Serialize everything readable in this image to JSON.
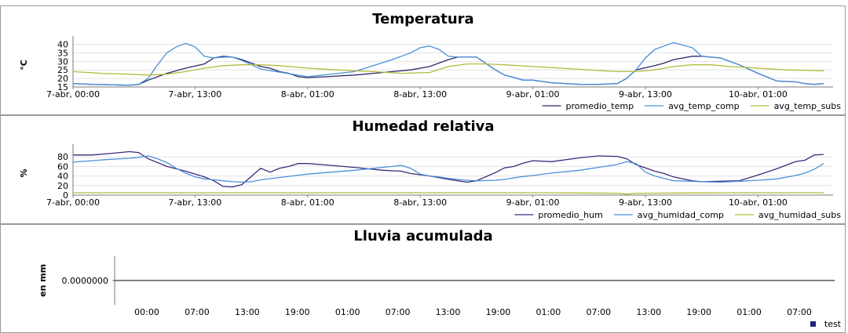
{
  "chart_data": [
    {
      "type": "line",
      "title": "Temperatura",
      "ylabel": "°C",
      "ylim": [
        15,
        43
      ],
      "yticks": [
        15,
        20,
        25,
        30,
        35,
        40
      ],
      "x_tick_labels": [
        "7-abr, 00:00",
        "7-abr, 13:00",
        "8-abr, 01:00",
        "8-abr, 13:00",
        "9-abr, 01:00",
        "9-abr, 13:00",
        "10-abr, 01:00"
      ],
      "x_tick_hours": [
        0,
        13,
        25,
        37,
        49,
        61,
        73
      ],
      "xlim_hours": [
        0,
        81
      ],
      "grid": true,
      "legend_position": "bottom-right",
      "series": [
        {
          "name": "promedio_temp",
          "color": "#2b2a6a",
          "x": [
            0,
            2,
            4,
            6,
            7,
            8,
            10,
            12,
            14,
            15,
            16,
            17,
            18,
            20,
            21,
            22,
            23,
            24,
            25,
            27,
            30,
            33,
            35,
            36,
            38,
            40,
            41,
            42,
            43,
            45,
            46,
            47,
            48,
            49,
            51,
            54,
            56,
            58,
            59,
            60,
            62,
            63,
            64,
            66,
            67,
            69,
            71,
            73,
            75,
            77,
            78,
            79,
            80
          ],
          "y": [
            17,
            16.5,
            16.3,
            16,
            16.5,
            19,
            23,
            26,
            28.5,
            32,
            33,
            32.5,
            31,
            27,
            26,
            24,
            23,
            21,
            20.5,
            21,
            22,
            23.5,
            24.5,
            25,
            27,
            31,
            32.5,
            32.5,
            32.5,
            25,
            22,
            20.5,
            19,
            19,
            17.5,
            16.5,
            16.5,
            17,
            20,
            25,
            27.5,
            29,
            31,
            33,
            33,
            32,
            28,
            23,
            18.5,
            18,
            17,
            16.5,
            17
          ]
        },
        {
          "name": "avg_temp_comp",
          "color": "#4a90d9",
          "x": [
            0,
            2,
            4,
            6,
            7,
            8,
            9,
            10,
            11,
            12,
            13,
            14,
            15,
            16,
            17,
            18,
            19,
            20,
            25,
            30,
            34,
            35,
            36,
            37,
            38,
            39,
            40,
            41,
            42,
            43,
            45,
            46,
            47,
            48,
            49,
            51,
            54,
            56,
            58,
            59,
            60,
            61,
            62,
            63,
            64,
            66,
            67,
            69,
            71,
            73,
            75,
            77,
            78,
            79,
            80
          ],
          "y": [
            17,
            16.5,
            16.3,
            16,
            16.5,
            20,
            28,
            35,
            38.5,
            40.5,
            38.5,
            33,
            32,
            32.5,
            32.5,
            30.5,
            28,
            25.5,
            21,
            24,
            31,
            33,
            35,
            38,
            39,
            37,
            33,
            32.5,
            32.5,
            32.5,
            25,
            22,
            20.5,
            19,
            19,
            17.5,
            16.5,
            16.5,
            17,
            20,
            25,
            32,
            37,
            39,
            41,
            38,
            33,
            32,
            28,
            23,
            18.5,
            18,
            17,
            16.5,
            17
          ]
        },
        {
          "name": "avg_temp_subs",
          "color": "#b4bb3c",
          "x": [
            0,
            3,
            6,
            8,
            10,
            12,
            14,
            16,
            18,
            20,
            22,
            25,
            28,
            32,
            35,
            38,
            40,
            42,
            44,
            46,
            49,
            52,
            55,
            58,
            60,
            62,
            64,
            66,
            68,
            70,
            73,
            76,
            80
          ],
          "y": [
            24,
            23,
            22.5,
            22,
            22.5,
            24,
            26,
            27.5,
            28,
            28,
            27.5,
            26,
            25,
            24,
            23,
            23.5,
            27,
            28.5,
            28.5,
            28,
            27,
            26,
            25,
            24,
            24,
            25,
            27,
            28,
            28,
            27,
            26,
            25,
            24.5
          ]
        }
      ]
    },
    {
      "type": "line",
      "title": "Humedad relativa",
      "ylabel": "%",
      "ylim": [
        0,
        100
      ],
      "yticks": [
        0,
        20,
        40,
        60,
        80
      ],
      "x_tick_labels": [
        "7-abr, 00:00",
        "7-abr, 13:00",
        "8-abr, 01:00",
        "8-abr, 13:00",
        "9-abr, 01:00",
        "9-abr, 13:00",
        "10-abr, 01:00"
      ],
      "x_tick_hours": [
        0,
        13,
        25,
        37,
        49,
        61,
        73
      ],
      "xlim_hours": [
        0,
        81
      ],
      "grid": true,
      "legend_position": "bottom-right",
      "series": [
        {
          "name": "promedio_hum",
          "color": "#3b2b7a",
          "x": [
            0,
            2,
            4,
            6,
            7,
            8,
            10,
            12,
            14,
            15,
            16,
            17,
            18,
            20,
            21,
            22,
            23,
            24,
            25,
            27,
            30,
            33,
            35,
            36,
            38,
            40,
            41,
            42,
            43,
            45,
            46,
            47,
            48,
            49,
            51,
            54,
            56,
            58,
            59,
            60,
            62,
            63,
            64,
            66,
            67,
            69,
            71,
            73,
            75,
            77,
            78,
            79,
            80
          ],
          "y": [
            84,
            84,
            87,
            91,
            89,
            76,
            60,
            50,
            38,
            30,
            18,
            17,
            22,
            56,
            48,
            56,
            60,
            66,
            66,
            63,
            58,
            52,
            50,
            45,
            40,
            33,
            30,
            27,
            30,
            47,
            57,
            60,
            67,
            72,
            70,
            78,
            82,
            81,
            76,
            64,
            50,
            45,
            38,
            30,
            28,
            29,
            30,
            42,
            55,
            70,
            73,
            84,
            85
          ]
        },
        {
          "name": "avg_humidad_comp",
          "color": "#4a90d9",
          "x": [
            0,
            2,
            4,
            6,
            7,
            8,
            9,
            10,
            11,
            12,
            13,
            14,
            15,
            16,
            17,
            18,
            19,
            20,
            25,
            30,
            34,
            35,
            36,
            37,
            38,
            39,
            40,
            41,
            42,
            43,
            45,
            46,
            47,
            48,
            49,
            51,
            54,
            56,
            58,
            59,
            60,
            61,
            62,
            63,
            64,
            66,
            67,
            69,
            71,
            73,
            75,
            77,
            78,
            79,
            80
          ],
          "y": [
            69,
            72,
            75,
            77,
            79,
            82,
            76,
            68,
            56,
            46,
            38,
            34,
            32,
            30,
            28,
            27,
            28,
            32,
            44,
            52,
            60,
            62,
            56,
            44,
            40,
            38,
            35,
            33,
            31,
            30,
            31,
            33,
            36,
            39,
            41,
            46,
            52,
            58,
            64,
            70,
            66,
            48,
            40,
            35,
            30,
            29,
            28,
            27,
            29,
            31,
            34,
            41,
            46,
            54,
            66
          ]
        },
        {
          "name": "avg_humidad_subs",
          "color": "#b4bb3c",
          "x": [
            0,
            10,
            20,
            30,
            40,
            50,
            58,
            59,
            60,
            70,
            80
          ],
          "y": [
            5,
            5,
            5,
            5,
            5,
            5,
            4,
            2,
            4,
            5,
            5
          ]
        }
      ]
    },
    {
      "type": "line",
      "title": "Lluvia acumulada",
      "ylabel": "en mm",
      "ytick_labels": [
        "0.0000000"
      ],
      "x_tick_labels": [
        "00:00",
        "07:00",
        "13:00",
        "19:00",
        "01:00",
        "07:00",
        "13:00",
        "19:00",
        "01:00",
        "07:00",
        "13:00",
        "19:00",
        "01:00",
        "07:00"
      ],
      "grid": false,
      "legend_position": "bottom-right",
      "series": [
        {
          "name": "test",
          "color": "#23237a",
          "values": [
            0,
            0
          ]
        }
      ]
    }
  ]
}
